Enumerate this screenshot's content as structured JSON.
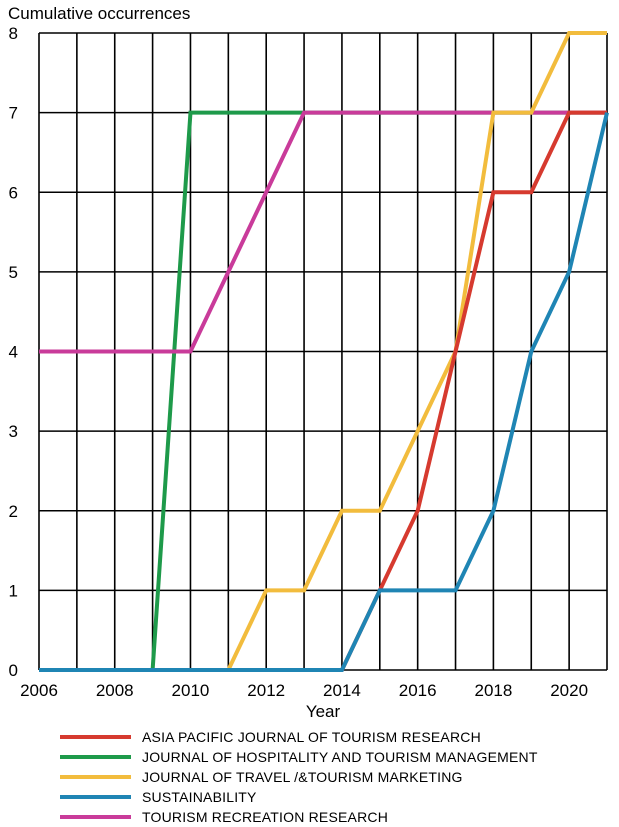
{
  "chart_data": {
    "type": "line",
    "ylabel": "Cumulative occurrences",
    "xlabel": "Year",
    "xlim": [
      2006,
      2021
    ],
    "ylim": [
      0,
      8
    ],
    "x_ticks": [
      2006,
      2008,
      2010,
      2012,
      2014,
      2016,
      2018,
      2020
    ],
    "y_ticks": [
      0,
      1,
      2,
      3,
      4,
      5,
      6,
      7,
      8
    ],
    "grid": true,
    "legend_position": "bottom",
    "x": [
      2006,
      2007,
      2008,
      2009,
      2010,
      2011,
      2012,
      2013,
      2014,
      2015,
      2016,
      2017,
      2018,
      2019,
      2020,
      2021
    ],
    "series": [
      {
        "name": "ASIA PACIFIC JOURNAL OF TOURISM RESEARCH",
        "color": "#d63a2f",
        "values": [
          0,
          0,
          0,
          0,
          0,
          0,
          0,
          0,
          0,
          1,
          2,
          4,
          6,
          6,
          7,
          7
        ]
      },
      {
        "name": "JOURNAL OF HOSPITALITY AND TOURISM MANAGEMENT",
        "color": "#1e9a4a",
        "values": [
          0,
          0,
          0,
          0,
          7,
          7,
          7,
          7,
          7,
          7,
          7,
          7,
          7,
          7,
          7,
          7
        ]
      },
      {
        "name": "JOURNAL OF TRAVEL /&TOURISM MARKETING",
        "color": "#f2bc3d",
        "values": [
          0,
          0,
          0,
          0,
          0,
          0,
          1,
          1,
          2,
          2,
          3,
          4,
          7,
          7,
          8,
          8
        ]
      },
      {
        "name": "SUSTAINABILITY",
        "color": "#1f85b4",
        "values": [
          0,
          0,
          0,
          0,
          0,
          0,
          0,
          0,
          0,
          1,
          1,
          1,
          2,
          4,
          5,
          7
        ]
      },
      {
        "name": "TOURISM RECREATION RESEARCH",
        "color": "#c93b9a",
        "values": [
          4,
          4,
          4,
          4,
          4,
          5,
          6,
          7,
          7,
          7,
          7,
          7,
          7,
          7,
          7,
          7
        ]
      }
    ]
  }
}
